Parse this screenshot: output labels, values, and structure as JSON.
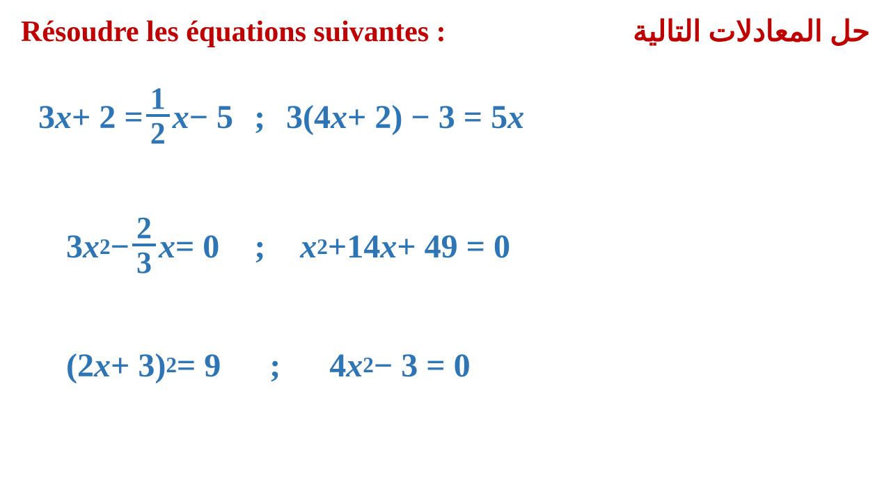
{
  "colors": {
    "title": "#c00000",
    "equation": "#2e75b6",
    "background": "#ffffff"
  },
  "typography": {
    "title_fontsize": 42,
    "equation_fontsize": 48,
    "font_family": "Cambria Math, Times New Roman, serif",
    "font_weight": "bold",
    "style": "italic"
  },
  "header": {
    "title_fr": "Résoudre les équations suivantes :",
    "title_ar": "حل المعادلات التالية"
  },
  "separator": ";",
  "equations": {
    "row1": {
      "eq1": {
        "lhs_a": "3",
        "lhs_var1": "x",
        "lhs_b": " + 2 = ",
        "frac_num": "1",
        "frac_den": "2",
        "rhs_var": "x",
        "rhs_tail": " − 5"
      },
      "eq2": {
        "a": "3(4",
        "var1": "x",
        "b": " + 2) − 3 = 5",
        "var2": "x"
      }
    },
    "row2": {
      "eq1": {
        "a": "3",
        "var1": "x",
        "exp1": "2",
        "b": " − ",
        "frac_num": "2",
        "frac_den": "3",
        "var2": "x",
        "tail": " = 0"
      },
      "eq2": {
        "var1": "x",
        "exp1": "2",
        "mid": " +14",
        "var2": "x",
        "tail": " + 49 = 0"
      }
    },
    "row3": {
      "eq1": {
        "a": "(2",
        "var1": "x",
        "b": " + 3)",
        "exp": "2",
        "tail": " = 9"
      },
      "eq2": {
        "a": "4",
        "var1": "x",
        "exp": "2",
        "tail": " − 3 = 0"
      }
    }
  }
}
